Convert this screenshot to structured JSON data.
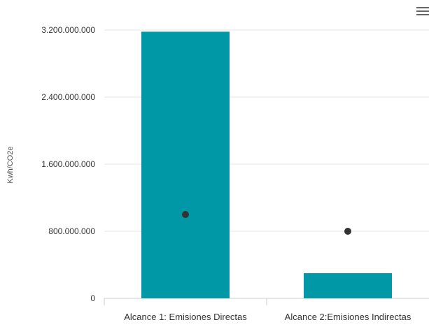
{
  "chart_data": {
    "type": "bar",
    "categories": [
      "Alcance 1: Emisiones Directas",
      "Alcance 2:Emisiones Indirectas"
    ],
    "series": [
      {
        "type": "bar",
        "values": [
          3180000000,
          300000000
        ]
      },
      {
        "type": "scatter",
        "values": [
          1000000000,
          800000000
        ]
      }
    ],
    "ylabel": "Kwh/CO2e",
    "ylim": [
      0,
      3200000000
    ],
    "yticks": [
      "0",
      "800.000.000",
      "1.600.000.000",
      "2.400.000.000",
      "3.200.000.000"
    ],
    "grid": true,
    "colors": {
      "bar": "#0097a7",
      "point": "#333333"
    }
  },
  "menu_icon": "hamburger-menu-icon"
}
